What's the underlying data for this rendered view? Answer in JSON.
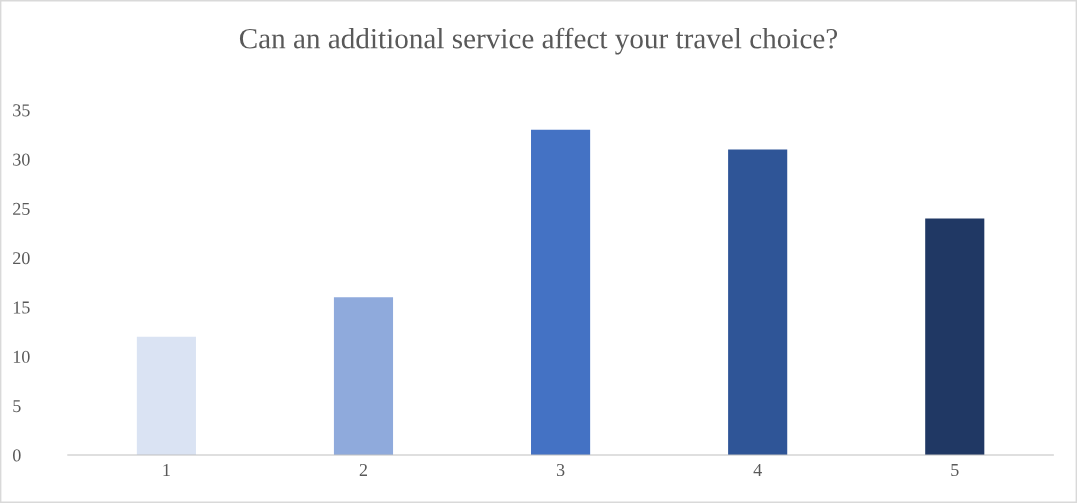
{
  "chart_data": {
    "type": "bar",
    "title": "Can an additional service affect your travel choice?",
    "categories": [
      "1",
      "2",
      "3",
      "4",
      "5"
    ],
    "values": [
      12,
      16,
      33,
      31,
      24
    ],
    "colors": [
      "#dae3f3",
      "#8faadc",
      "#4472c4",
      "#2f5597",
      "#203864"
    ],
    "ylim": [
      0,
      35
    ],
    "yticks": [
      0,
      5,
      10,
      15,
      20,
      25,
      30,
      35
    ],
    "grid": false,
    "legend": false
  }
}
